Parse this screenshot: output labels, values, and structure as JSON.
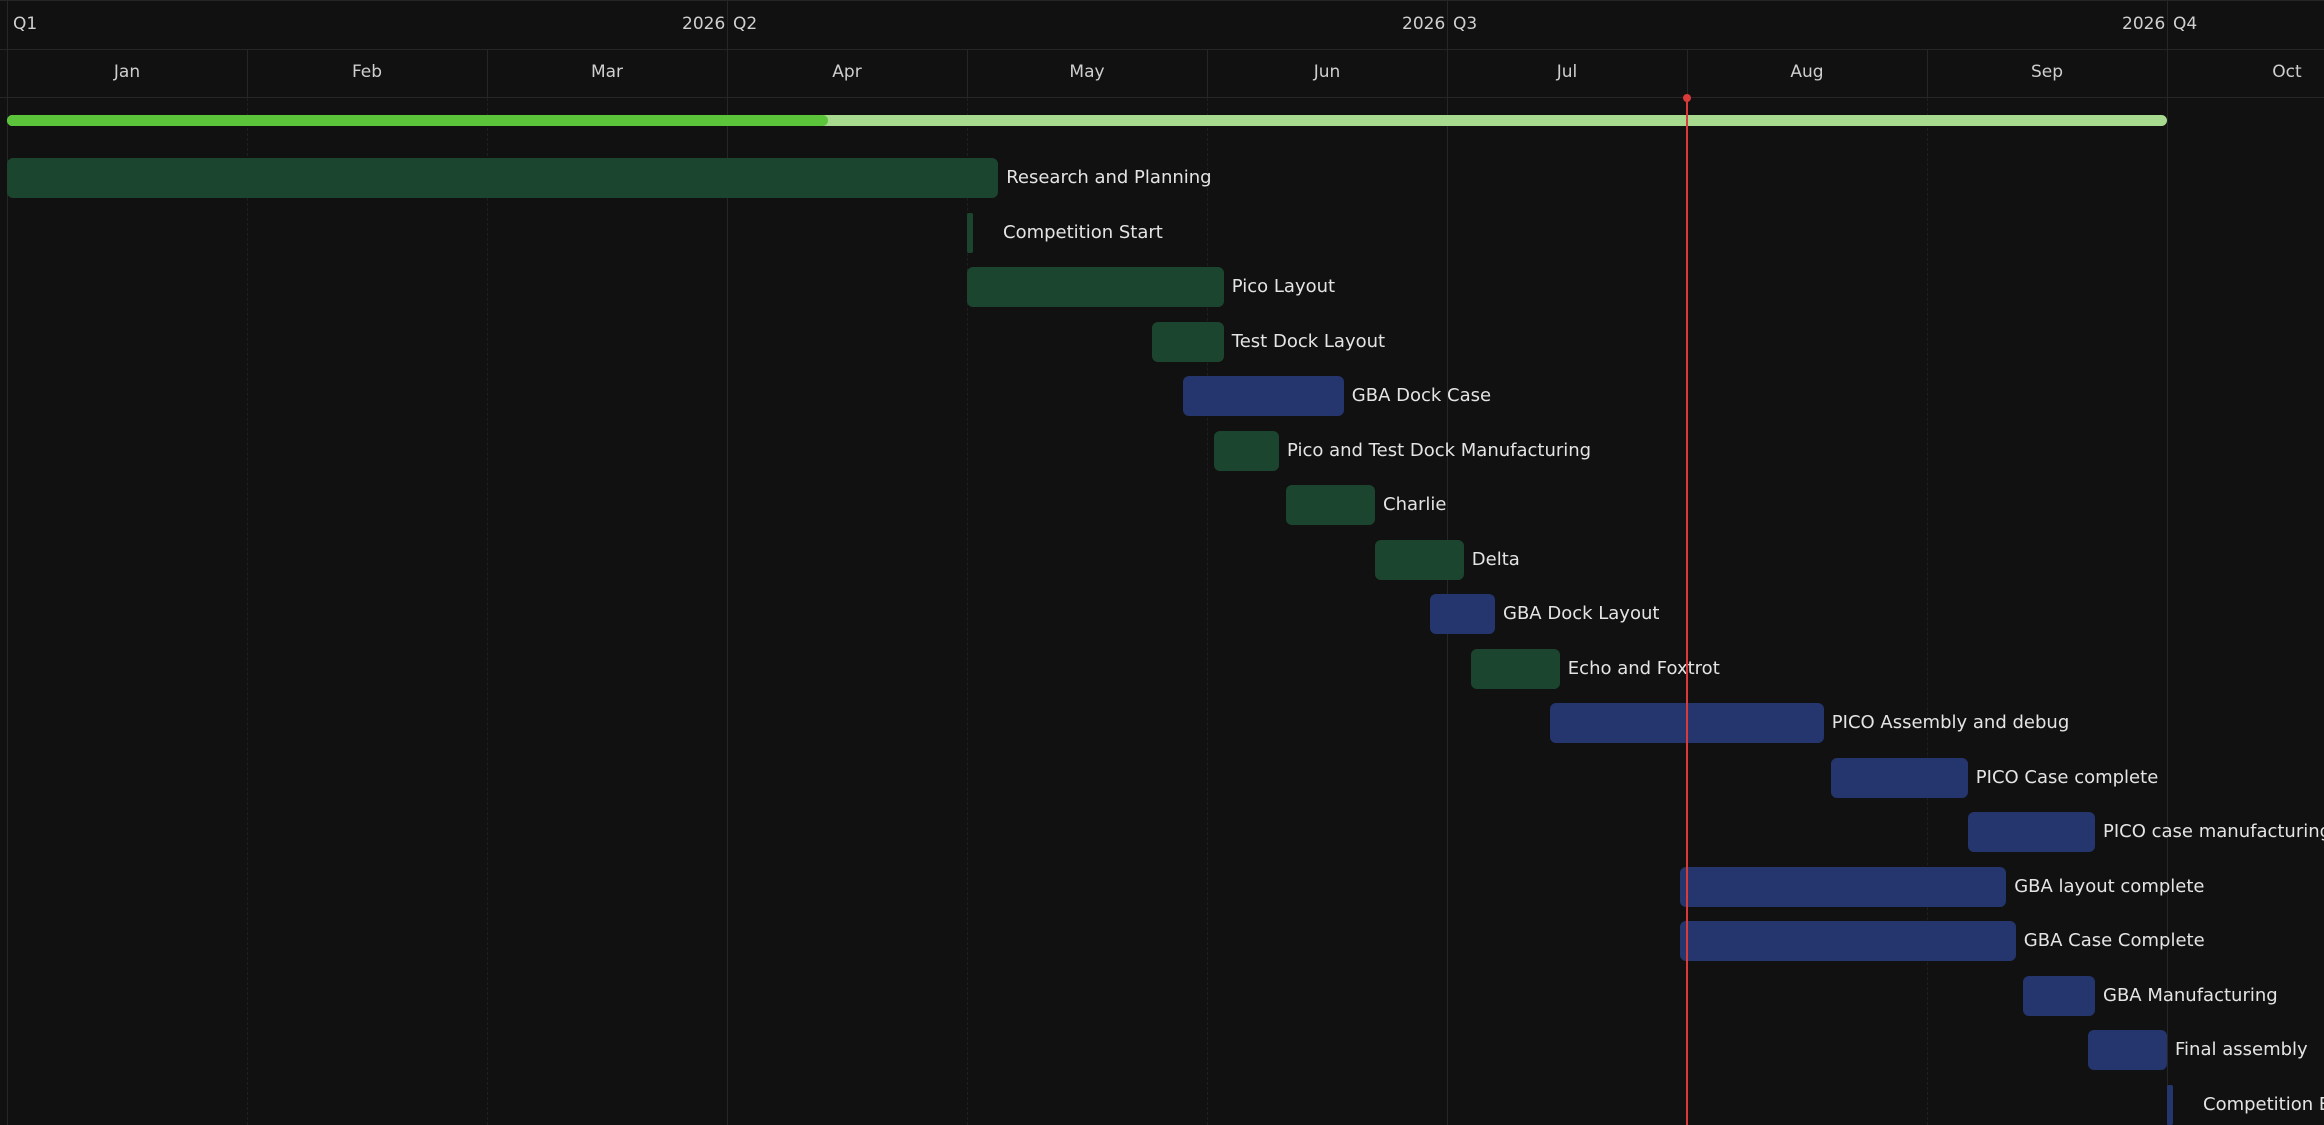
{
  "chart_data": {
    "type": "gantt",
    "year": "2026",
    "quarters": [
      {
        "label": "Q1",
        "year": "2026",
        "start_month": 0,
        "end_month": 3
      },
      {
        "label": "Q2",
        "year": "2026",
        "start_month": 3,
        "end_month": 6
      },
      {
        "label": "Q3",
        "year": "2026",
        "start_month": 6,
        "end_month": 9
      },
      {
        "label": "Q4",
        "year": "",
        "start_month": 9,
        "end_month": 10
      }
    ],
    "months": [
      "Jan",
      "Feb",
      "Mar",
      "Apr",
      "May",
      "Jun",
      "Jul",
      "Aug",
      "Sep",
      "Oct"
    ],
    "progress": {
      "start": 0.0,
      "end": 9.0,
      "fraction": 0.38
    },
    "today": 7.0,
    "tasks": [
      {
        "name": "Research and Planning",
        "start": 0.0,
        "end": 4.13,
        "color": "#1c4530"
      },
      {
        "name": "Competition Start",
        "start": 4.0,
        "end": 4.0,
        "color": "#1c4530",
        "milestone": true
      },
      {
        "name": "Pico Layout",
        "start": 4.0,
        "end": 5.07,
        "color": "#1c4530"
      },
      {
        "name": "Test Dock Layout",
        "start": 4.77,
        "end": 5.07,
        "color": "#1c4530"
      },
      {
        "name": "GBA Dock Case",
        "start": 4.9,
        "end": 5.57,
        "color": "#25356e"
      },
      {
        "name": "Pico and Test Dock Manufacturing",
        "start": 5.03,
        "end": 5.3,
        "color": "#1c4530"
      },
      {
        "name": "Charlie",
        "start": 5.33,
        "end": 5.7,
        "color": "#1c4530"
      },
      {
        "name": "Delta",
        "start": 5.7,
        "end": 6.07,
        "color": "#1c4530"
      },
      {
        "name": "GBA Dock Layout",
        "start": 5.93,
        "end": 6.2,
        "color": "#25356e"
      },
      {
        "name": "Echo and Foxtrot",
        "start": 6.1,
        "end": 6.47,
        "color": "#1c4530"
      },
      {
        "name": "PICO Assembly and debug",
        "start": 6.43,
        "end": 7.57,
        "color": "#25356e"
      },
      {
        "name": "PICO Case complete",
        "start": 7.6,
        "end": 8.17,
        "color": "#25356e"
      },
      {
        "name": "PICO case manufacturing",
        "start": 8.17,
        "end": 8.7,
        "color": "#25356e"
      },
      {
        "name": "GBA layout complete",
        "start": 6.97,
        "end": 8.33,
        "color": "#25356e"
      },
      {
        "name": "GBA Case Complete",
        "start": 6.97,
        "end": 8.37,
        "color": "#25356e"
      },
      {
        "name": "GBA Manufacturing",
        "start": 8.4,
        "end": 8.7,
        "color": "#25356e"
      },
      {
        "name": "Final assembly",
        "start": 8.67,
        "end": 9.0,
        "color": "#25356e"
      },
      {
        "name": "Competition End",
        "start": 9.0,
        "end": 9.0,
        "color": "#25356e",
        "milestone": true
      }
    ]
  }
}
